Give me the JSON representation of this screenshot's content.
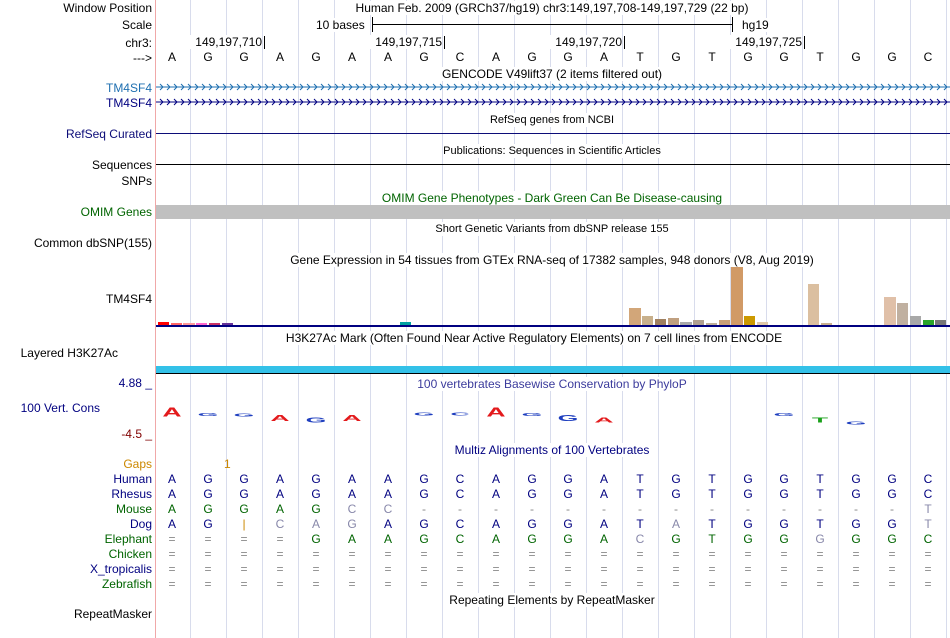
{
  "labels": {
    "window_position": "Window Position",
    "scale": "Scale",
    "chrom": "chr3:",
    "arrow": "--->",
    "tm4sf4_a": "TM4SF4",
    "tm4sf4_b": "TM4SF4",
    "refseq": "RefSeq Curated",
    "sequences": "Sequences",
    "snps": "SNPs",
    "omim": "OMIM Genes",
    "dbsnp": "Common dbSNP(155)",
    "gtex_gene": "TM4SF4",
    "h3k27ac": "Layered H3K27Ac",
    "cons_max": "4.88 _",
    "cons": "100 Vert. Cons",
    "cons_min": "-4.5 _",
    "gaps": "Gaps",
    "repeatmasker": "RepeatMasker"
  },
  "ruler": {
    "position": "Human Feb. 2009 (GRCh37/hg19)   chr3:149,197,708-149,197,729 (22 bp)",
    "scale_text": "10 bases",
    "assembly": "hg19",
    "ticks": [
      "149,197,710",
      "149,197,715",
      "149,197,720",
      "149,197,725"
    ]
  },
  "sequence": [
    "A",
    "G",
    "G",
    "A",
    "G",
    "A",
    "A",
    "G",
    "C",
    "A",
    "G",
    "G",
    "A",
    "T",
    "G",
    "T",
    "G",
    "G",
    "T",
    "G",
    "G",
    "C"
  ],
  "track_titles": {
    "gencode": "GENCODE V49lift37 (2 items filtered out)",
    "refseq": "RefSeq genes from NCBI",
    "pubs": "Publications: Sequences in Scientific Articles",
    "omim": "OMIM Gene Phenotypes - Dark Green Can Be Disease-causing",
    "dbsnp": "Short Genetic Variants from dbSNP release 155",
    "gtex": "Gene Expression in 54 tissues from GTEx RNA-seq of 17382 samples, 948 donors (V8, Aug 2019)",
    "h3k27ac": "H3K27Ac Mark (Often Found Near Active Regulatory Elements) on 7 cell lines from ENCODE",
    "phylop": "100 vertebrates Basewise Conservation by PhyloP",
    "multiz": "Multiz Alignments of 100 Vertebrates",
    "repeats": "Repeating Elements by RepeatMasker"
  },
  "gaps_value": "1",
  "gtex_levels": [
    0.05,
    0.04,
    0.04,
    0.03,
    0.04,
    0.03,
    0,
    0,
    0,
    0,
    0,
    0,
    0,
    0,
    0,
    0,
    0,
    0,
    0,
    0.06,
    0,
    0,
    0,
    0,
    0,
    0,
    0,
    0,
    0,
    0,
    0,
    0,
    0,
    0,
    0,
    0,
    0,
    0.3,
    0.15,
    0.1,
    0.12,
    0.06,
    0.08,
    0.04,
    0.08,
    1.0,
    0.16,
    0.05,
    0,
    0,
    0,
    0.7,
    0.04,
    0,
    0,
    0,
    0,
    0.48,
    0.38,
    0.16,
    0.08,
    0.08
  ],
  "gtex_colors": [
    "#ff0000",
    "#ff6666",
    "#ff9999",
    "#ff66cc",
    "#cc3366",
    "#663399",
    "#3399ff",
    "#0066cc",
    "#99ccff",
    "#009999",
    "#00cccc",
    "#66cc99",
    "#339966",
    "#009933",
    "#66ff66",
    "#99cc33",
    "#cccc00",
    "#ffcc00",
    "#ff9900",
    "#00a0a0",
    "#ccaa88",
    "#aabb99",
    "#996633",
    "#cc9966",
    "#ddbb99",
    "#eeccaa",
    "#bb8866",
    "#aa9977",
    "#887766",
    "#998877",
    "#777766",
    "#666655",
    "#555544",
    "#cc99ff",
    "#9966cc",
    "#6633cc",
    "#3300cc",
    "#d2a679",
    "#c8b08c",
    "#a08060",
    "#c0a080",
    "#aaaaaa",
    "#b0a090",
    "#c0b098",
    "#caa078",
    "#d19a66",
    "#cc9900",
    "#e0c9a8",
    "#ccbb99",
    "#ddccaa",
    "#bbaa88",
    "#dbbfa0",
    "#c9b08f",
    "#b8a080",
    "#aa9070",
    "#998060",
    "#887050",
    "#e0c0a8",
    "#c0b0a0",
    "#a8a8a8",
    "#2aa52a",
    "#777777"
  ],
  "phylop_pattern": [
    "A",
    "G",
    "G",
    "A",
    "G",
    "A",
    "A",
    "G",
    "C",
    "A",
    "G",
    "G",
    "A",
    "T",
    "G",
    "T",
    "G",
    "G",
    "T",
    "G",
    "G",
    "C"
  ],
  "phylop_values": [
    0.9,
    -0.2,
    -0.3,
    0.6,
    0.5,
    0.6,
    0,
    -0.1,
    -0.1,
    0.9,
    -0.2,
    0.6,
    0.5,
    0,
    0,
    0,
    0,
    -0.2,
    0.5,
    0.1,
    0,
    0
  ],
  "species": [
    {
      "name": "Human",
      "color": "#000080",
      "bases": [
        "A",
        "G",
        "G",
        "A",
        "G",
        "A",
        "A",
        "G",
        "C",
        "A",
        "G",
        "G",
        "A",
        "T",
        "G",
        "T",
        "G",
        "G",
        "T",
        "G",
        "G",
        "C"
      ]
    },
    {
      "name": "Rhesus",
      "color": "#000080",
      "bases": [
        "A",
        "G",
        "G",
        "A",
        "G",
        "A",
        "A",
        "G",
        "C",
        "A",
        "G",
        "G",
        "A",
        "T",
        "G",
        "T",
        "G",
        "G",
        "T",
        "G",
        "G",
        "C"
      ]
    },
    {
      "name": "Mouse",
      "color": "#006400",
      "bases": [
        "A",
        "G",
        "G",
        "A",
        "G",
        "C",
        "C",
        "-",
        "-",
        "-",
        "-",
        "-",
        "-",
        "-",
        "-",
        "-",
        "-",
        "-",
        "-",
        "-",
        "-",
        "T"
      ]
    },
    {
      "name": "Dog",
      "color": "#000080",
      "bases": [
        "A",
        "G",
        "|",
        "C",
        "A",
        "G",
        "A",
        "G",
        "C",
        "A",
        "G",
        "G",
        "A",
        "T",
        "A",
        "T",
        "G",
        "G",
        "T",
        "G",
        "G",
        "T"
      ]
    },
    {
      "name": "Elephant",
      "color": "#006400",
      "bases": [
        "=",
        "=",
        "=",
        "=",
        "G",
        "A",
        "A",
        "G",
        "C",
        "A",
        "G",
        "G",
        "A",
        "C",
        "G",
        "T",
        "G",
        "G",
        "G",
        "G",
        "G",
        "C"
      ]
    },
    {
      "name": "Chicken",
      "color": "#006400",
      "bases": [
        "=",
        "=",
        "=",
        "=",
        "=",
        "=",
        "=",
        "=",
        "=",
        "=",
        "=",
        "=",
        "=",
        "=",
        "=",
        "=",
        "=",
        "=",
        "=",
        "=",
        "=",
        "="
      ]
    },
    {
      "name": "X_tropicalis",
      "color": "#000080",
      "bases": [
        "=",
        "=",
        "=",
        "=",
        "=",
        "=",
        "=",
        "=",
        "=",
        "=",
        "=",
        "=",
        "=",
        "=",
        "=",
        "=",
        "=",
        "=",
        "=",
        "=",
        "=",
        "="
      ]
    },
    {
      "name": "Zebrafish",
      "color": "#006400",
      "bases": [
        "=",
        "=",
        "=",
        "=",
        "=",
        "=",
        "=",
        "=",
        "=",
        "=",
        "=",
        "=",
        "=",
        "=",
        "=",
        "=",
        "=",
        "=",
        "=",
        "=",
        "=",
        "="
      ]
    }
  ],
  "colors": {
    "gencode_strand": "#1e6fb0",
    "gencode_alt": "#000080",
    "omim_bar": "#c0c0c0",
    "h3k27ac": "#33c1e8",
    "phylop_pos_title": "#3b3b9c",
    "cons_max": "#000080",
    "cons_min": "#800000",
    "gaps": "#cc8800",
    "grid": "#d8dcec"
  }
}
